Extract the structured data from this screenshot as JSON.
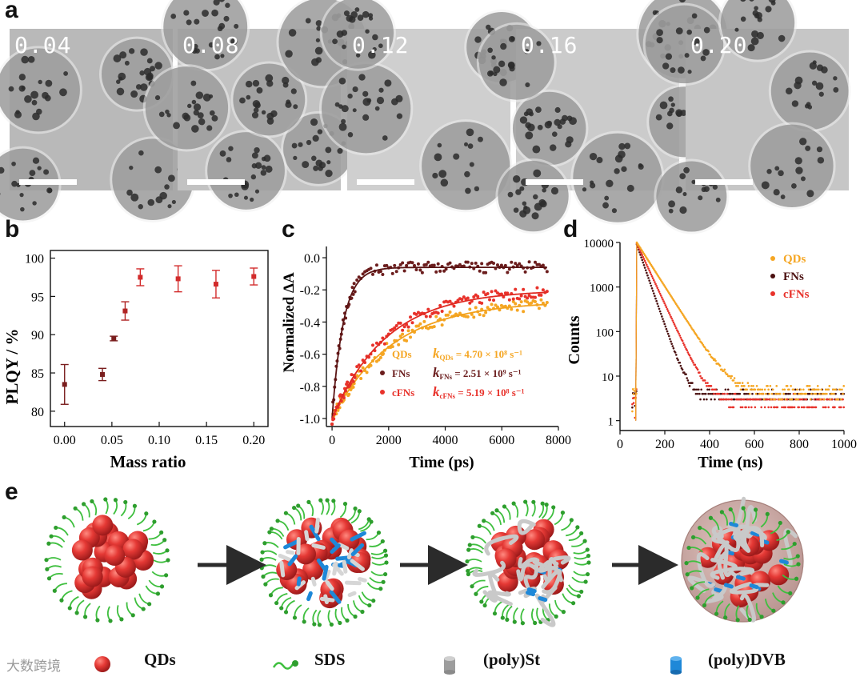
{
  "panel_a": {
    "letter": "a",
    "images": [
      {
        "label": "0.04",
        "tone": "#b9b9b9"
      },
      {
        "label": "0.08",
        "tone": "#c2c2c2"
      },
      {
        "label": "0.12",
        "tone": "#cfcfcf"
      },
      {
        "label": "0.16",
        "tone": "#cbcbcb"
      },
      {
        "label": "0.20",
        "tone": "#c6c6c6"
      }
    ]
  },
  "panel_b": {
    "letter": "b"
  },
  "panel_c": {
    "letter": "c"
  },
  "panel_d": {
    "letter": "d"
  },
  "panel_e": {
    "letter": "e",
    "legend": [
      {
        "icon": "qd-sphere-icon",
        "label": "QDs"
      },
      {
        "icon": "sds-chain-icon",
        "label": "SDS"
      },
      {
        "icon": "poly-st-cylinder-icon",
        "label": "(poly)St"
      },
      {
        "icon": "poly-dvb-cylinder-icon",
        "label": "(poly)DVB"
      }
    ],
    "watermark": "大数跨境"
  },
  "colors": {
    "qds": "#f5a623",
    "fns": "#6b1d1d",
    "cfns": "#e8322b",
    "plqy": "#d22b2b"
  },
  "chart_data": [
    {
      "type": "scatter",
      "panel": "b",
      "xlabel": "Mass ratio",
      "ylabel": "PLQY / %",
      "xlim": [
        -0.015,
        0.215
      ],
      "ylim": [
        78,
        101
      ],
      "xticks": [
        "0.00",
        "0.05",
        "0.10",
        "0.15",
        "0.20"
      ],
      "yticks": [
        "80",
        "85",
        "90",
        "95",
        "100"
      ],
      "x": [
        0.0,
        0.04,
        0.052,
        0.064,
        0.08,
        0.12,
        0.16,
        0.2
      ],
      "values": [
        83.5,
        84.8,
        89.5,
        93.1,
        97.5,
        97.3,
        96.6,
        97.6
      ],
      "errors": [
        2.6,
        0.8,
        0.3,
        1.2,
        1.1,
        1.7,
        1.8,
        1.1
      ],
      "point_colors": [
        "#7a1e1e",
        "#7a1e1e",
        "#7a1e1e",
        "#b02424",
        "#d22b2b",
        "#d22b2b",
        "#d22b2b",
        "#d22b2b"
      ]
    },
    {
      "type": "line",
      "panel": "c",
      "xlabel": "Time (ps)",
      "ylabel": "Normalized ΔA",
      "xlim": [
        -200,
        8000
      ],
      "ylim": [
        -1.05,
        0.07
      ],
      "xticks": [
        "0",
        "2000",
        "4000",
        "6000",
        "8000"
      ],
      "yticks": [
        "0.0",
        "-0.2",
        "-0.4",
        "-0.6",
        "-0.8",
        "-1.0"
      ],
      "series": [
        {
          "name": "QDs",
          "rate_label": "k",
          "rate_sub": "QDs",
          "rate_value": " = 4.70 × 10⁸ s⁻¹",
          "rate": 0.00047,
          "plateau": -0.27,
          "amp": -0.73
        },
        {
          "name": "FNs",
          "rate_label": "k",
          "rate_sub": "FNs",
          "rate_value": " = 2.51 × 10⁹ s⁻¹",
          "rate": 0.00251,
          "plateau": -0.06,
          "amp": -0.94
        },
        {
          "name": "cFNs",
          "rate_label": "k",
          "rate_sub": "cFNs",
          "rate_value": " = 5.19 × 10⁸ s⁻¹",
          "rate": 0.000519,
          "plateau": -0.2,
          "amp": -0.8
        }
      ]
    },
    {
      "type": "scatter",
      "panel": "d",
      "xlabel": "Time (ns)",
      "ylabel": "Counts",
      "scale": "log-y",
      "xlim": [
        0,
        1000
      ],
      "ylim": [
        0.6,
        10000
      ],
      "xticks": [
        "0",
        "200",
        "400",
        "600",
        "800",
        "1000"
      ],
      "yticks": [
        "1",
        "10",
        "100",
        "1000",
        "10000"
      ],
      "series": [
        {
          "name": "QDs",
          "tau": 55,
          "peak": 10000,
          "floor": 5
        },
        {
          "name": "FNs",
          "tau": 30,
          "peak": 9000,
          "floor": 4
        },
        {
          "name": "cFNs",
          "tau": 40,
          "peak": 9500,
          "floor": 3
        }
      ]
    }
  ]
}
